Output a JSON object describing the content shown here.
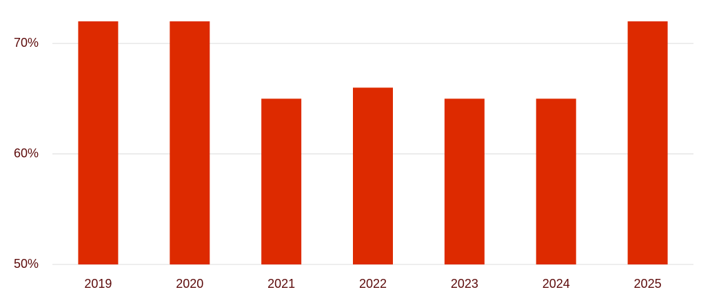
{
  "chart_data": {
    "type": "bar",
    "categories": [
      "2019",
      "2020",
      "2021",
      "2022",
      "2023",
      "2024",
      "2025"
    ],
    "values": [
      72,
      72,
      65,
      66,
      65,
      65,
      72
    ],
    "color": "#dd2a00",
    "ylim": [
      50,
      72
    ],
    "yticks": [
      {
        "value": 50,
        "label": "50%"
      },
      {
        "value": 60,
        "label": "60%"
      },
      {
        "value": 70,
        "label": "70%"
      }
    ],
    "grid": true
  }
}
